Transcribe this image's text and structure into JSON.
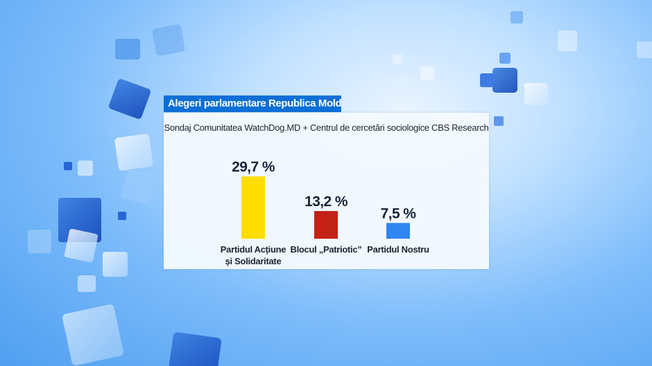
{
  "banner": {
    "title": "Alegeri parlamentare Republica Moldova"
  },
  "chart_data": {
    "type": "bar",
    "subtitle": "Sondaj Comunitatea WatchDog.MD + Centrul de cercetări sociologice CBS Research",
    "categories": [
      [
        "Partidul Acțiune",
        "și Solidaritate"
      ],
      [
        "Blocul „Patriotic”"
      ],
      [
        "Partidul Nostru"
      ]
    ],
    "values": [
      29.7,
      13.2,
      7.5
    ],
    "value_labels": [
      "29,7 %",
      "13,2 %",
      "7,5 %"
    ],
    "colors": [
      "#ffdd00",
      "#c32216",
      "#2f86f0"
    ],
    "grid": false,
    "legend": "none"
  }
}
